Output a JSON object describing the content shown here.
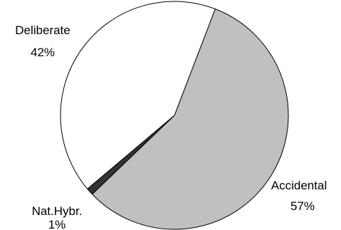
{
  "chart_data": {
    "type": "pie",
    "slices": [
      {
        "label": "Accidental",
        "value": 57,
        "value_label": "57%",
        "color": "#c0c0c0"
      },
      {
        "label": "Nat.Hybr.",
        "value": 1,
        "value_label": "1%",
        "color": "#333333"
      },
      {
        "label": "Deliberate",
        "value": 42,
        "value_label": "42%",
        "color": "#ffffff"
      }
    ],
    "legend": "none"
  }
}
